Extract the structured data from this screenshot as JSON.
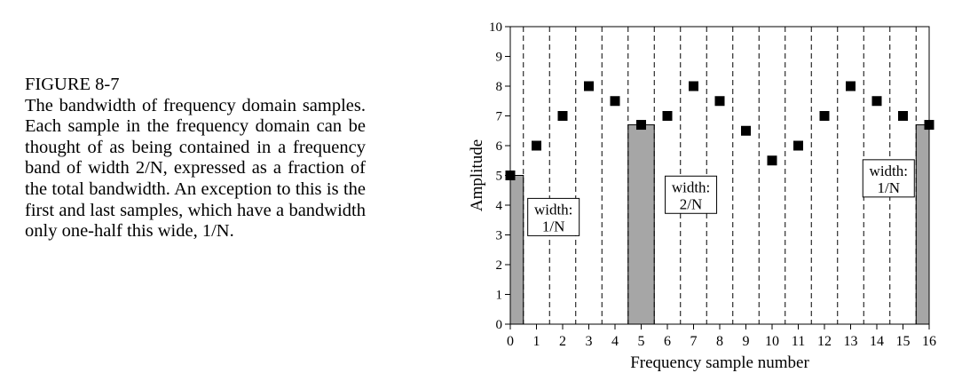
{
  "caption": {
    "title": "FIGURE 8-7",
    "body": "The bandwidth of frequency domain samples.  Each sample in the frequency domain can be thought of as being contained in a frequency band of width 2/N, expressed as a fraction of the total bandwidth. An exception to this is the first and last samples, which have a bandwidth only one-half this wide, 1/N."
  },
  "chart_data": {
    "type": "scatter",
    "xlabel": "Frequency sample number",
    "ylabel": "Amplitude",
    "xlim": [
      0,
      16
    ],
    "ylim": [
      0,
      10
    ],
    "x_ticks": [
      0,
      1,
      2,
      3,
      4,
      5,
      6,
      7,
      8,
      9,
      10,
      11,
      12,
      13,
      14,
      15,
      16
    ],
    "y_ticks": [
      0,
      1,
      2,
      3,
      4,
      5,
      6,
      7,
      8,
      9,
      10
    ],
    "points": {
      "x": [
        0,
        1,
        2,
        3,
        4,
        5,
        6,
        7,
        8,
        9,
        10,
        11,
        12,
        13,
        14,
        15,
        16
      ],
      "y": [
        5.0,
        6.0,
        7.0,
        8.0,
        7.5,
        6.7,
        7.0,
        8.0,
        7.5,
        6.5,
        5.5,
        6.0,
        7.0,
        8.0,
        7.5,
        7.0,
        6.7
      ]
    },
    "band_boundaries": [
      0.5,
      1.5,
      2.5,
      3.5,
      4.5,
      5.5,
      6.5,
      7.5,
      8.5,
      9.5,
      10.5,
      11.5,
      12.5,
      13.5,
      14.5,
      15.5
    ],
    "bands": [
      {
        "x0": 0,
        "x1": 0.5,
        "height": 5.0
      },
      {
        "x0": 4.5,
        "x1": 5.5,
        "height": 6.7
      },
      {
        "x0": 15.5,
        "x1": 16,
        "height": 6.7
      }
    ],
    "annotations": [
      {
        "lines": [
          "width:",
          "1/N"
        ],
        "x": 1.65,
        "y": 3.6
      },
      {
        "lines": [
          "width:",
          "2/N"
        ],
        "x": 6.9,
        "y": 4.35
      },
      {
        "lines": [
          "width:",
          "1/N"
        ],
        "x": 14.45,
        "y": 4.9
      }
    ],
    "colors": {
      "band_fill": "#a6a6a6",
      "marker": "#000000"
    },
    "grid": "vertical dashed lines at band boundaries"
  }
}
